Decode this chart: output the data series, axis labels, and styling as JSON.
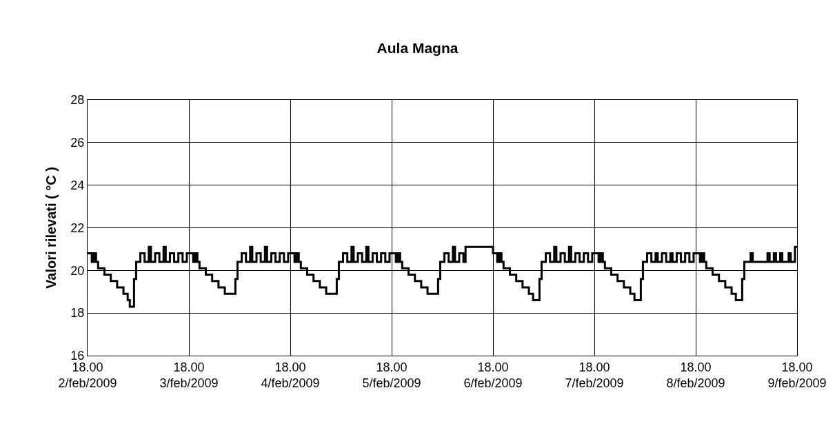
{
  "chart_data": {
    "type": "step",
    "title": "Aula Magna",
    "ylabel": "Valori rilevati ( °C )",
    "x": [
      "2009-02-02T18:00",
      "2009-02-02T19:00",
      "2009-02-02T19:30",
      "2009-02-02T20:00",
      "2009-02-02T20:30",
      "2009-02-02T22:00",
      "2009-02-02T23:30",
      "2009-02-03T01:00",
      "2009-02-03T02:30",
      "2009-02-03T03:30",
      "2009-02-03T04:00",
      "2009-02-03T05:00",
      "2009-02-03T05:30",
      "2009-02-03T06:30",
      "2009-02-03T07:30",
      "2009-02-03T08:30",
      "2009-02-03T09:00",
      "2009-02-03T10:00",
      "2009-02-03T11:00",
      "2009-02-03T12:00",
      "2009-02-03T12:30",
      "2009-02-03T13:30",
      "2009-02-03T14:30",
      "2009-02-03T15:30",
      "2009-02-03T16:30",
      "2009-02-03T17:30",
      "2009-02-03T18:00",
      "2009-02-03T19:00",
      "2009-02-03T19:30",
      "2009-02-03T20:00",
      "2009-02-03T20:30",
      "2009-02-03T22:00",
      "2009-02-03T23:30",
      "2009-02-04T01:00",
      "2009-02-04T02:30",
      "2009-02-04T05:00",
      "2009-02-04T05:30",
      "2009-02-04T06:30",
      "2009-02-04T07:30",
      "2009-02-04T08:30",
      "2009-02-04T09:00",
      "2009-02-04T10:00",
      "2009-02-04T11:00",
      "2009-02-04T12:00",
      "2009-02-04T12:30",
      "2009-02-04T13:30",
      "2009-02-04T14:30",
      "2009-02-04T15:30",
      "2009-02-04T16:30",
      "2009-02-04T17:30",
      "2009-02-04T18:00",
      "2009-02-04T19:00",
      "2009-02-04T19:30",
      "2009-02-04T20:00",
      "2009-02-04T20:30",
      "2009-02-04T22:00",
      "2009-02-04T23:30",
      "2009-02-05T01:00",
      "2009-02-05T02:30",
      "2009-02-05T05:00",
      "2009-02-05T05:30",
      "2009-02-05T06:30",
      "2009-02-05T07:30",
      "2009-02-05T08:30",
      "2009-02-05T09:00",
      "2009-02-05T10:00",
      "2009-02-05T11:00",
      "2009-02-05T12:00",
      "2009-02-05T12:30",
      "2009-02-05T13:30",
      "2009-02-05T14:30",
      "2009-02-05T15:30",
      "2009-02-05T16:30",
      "2009-02-05T17:30",
      "2009-02-05T18:00",
      "2009-02-05T19:00",
      "2009-02-05T19:30",
      "2009-02-05T20:00",
      "2009-02-05T20:30",
      "2009-02-05T22:00",
      "2009-02-05T23:30",
      "2009-02-06T01:00",
      "2009-02-06T02:30",
      "2009-02-06T05:00",
      "2009-02-06T05:30",
      "2009-02-06T06:30",
      "2009-02-06T07:30",
      "2009-02-06T08:30",
      "2009-02-06T09:00",
      "2009-02-06T10:00",
      "2009-02-06T11:00",
      "2009-02-06T11:30",
      "2009-02-06T18:00",
      "2009-02-06T19:00",
      "2009-02-06T19:30",
      "2009-02-06T20:00",
      "2009-02-06T20:30",
      "2009-02-06T22:00",
      "2009-02-06T23:30",
      "2009-02-07T01:00",
      "2009-02-07T02:30",
      "2009-02-07T03:30",
      "2009-02-07T05:00",
      "2009-02-07T05:30",
      "2009-02-07T06:30",
      "2009-02-07T07:30",
      "2009-02-07T08:30",
      "2009-02-07T09:00",
      "2009-02-07T10:00",
      "2009-02-07T11:00",
      "2009-02-07T12:00",
      "2009-02-07T12:30",
      "2009-02-07T13:30",
      "2009-02-07T14:30",
      "2009-02-07T15:30",
      "2009-02-07T16:30",
      "2009-02-07T17:30",
      "2009-02-07T18:00",
      "2009-02-07T19:00",
      "2009-02-07T19:30",
      "2009-02-07T20:00",
      "2009-02-07T20:30",
      "2009-02-07T22:00",
      "2009-02-07T23:30",
      "2009-02-08T01:00",
      "2009-02-08T02:30",
      "2009-02-08T03:30",
      "2009-02-08T05:00",
      "2009-02-08T05:30",
      "2009-02-08T06:30",
      "2009-02-08T07:30",
      "2009-02-08T08:30",
      "2009-02-08T09:00",
      "2009-02-08T10:00",
      "2009-02-08T11:00",
      "2009-02-08T12:00",
      "2009-02-08T12:30",
      "2009-02-08T13:30",
      "2009-02-08T14:30",
      "2009-02-08T15:30",
      "2009-02-08T16:30",
      "2009-02-08T17:30",
      "2009-02-08T18:00",
      "2009-02-08T19:00",
      "2009-02-08T19:30",
      "2009-02-08T20:00",
      "2009-02-08T20:30",
      "2009-02-08T22:00",
      "2009-02-08T23:30",
      "2009-02-09T01:00",
      "2009-02-09T02:30",
      "2009-02-09T03:30",
      "2009-02-09T05:00",
      "2009-02-09T05:30",
      "2009-02-09T07:00",
      "2009-02-09T07:30",
      "2009-02-09T11:00",
      "2009-02-09T11:30",
      "2009-02-09T12:30",
      "2009-02-09T13:00",
      "2009-02-09T14:00",
      "2009-02-09T14:30",
      "2009-02-09T16:00",
      "2009-02-09T16:30",
      "2009-02-09T17:30",
      "2009-02-09T18:00"
    ],
    "values": [
      20.8,
      20.4,
      20.8,
      20.4,
      20.1,
      19.8,
      19.5,
      19.2,
      18.9,
      18.6,
      18.3,
      19.6,
      20.4,
      20.8,
      20.4,
      21.1,
      20.4,
      20.8,
      20.4,
      21.1,
      20.4,
      20.8,
      20.4,
      20.8,
      20.4,
      20.8,
      20.8,
      20.4,
      20.8,
      20.4,
      20.1,
      19.8,
      19.5,
      19.2,
      18.9,
      19.6,
      20.4,
      20.8,
      20.4,
      21.1,
      20.4,
      20.8,
      20.4,
      21.1,
      20.4,
      20.8,
      20.4,
      20.8,
      20.4,
      20.8,
      20.8,
      20.4,
      20.8,
      20.4,
      20.1,
      19.8,
      19.5,
      19.2,
      18.9,
      19.6,
      20.4,
      20.8,
      20.4,
      21.1,
      20.4,
      20.8,
      20.4,
      21.1,
      20.4,
      20.8,
      20.4,
      20.8,
      20.4,
      20.8,
      20.8,
      20.4,
      20.8,
      20.4,
      20.1,
      19.8,
      19.5,
      19.2,
      18.9,
      19.6,
      20.4,
      20.8,
      20.4,
      21.1,
      20.4,
      20.8,
      20.4,
      21.1,
      20.8,
      20.4,
      20.8,
      20.4,
      20.1,
      19.8,
      19.5,
      19.2,
      18.9,
      18.6,
      19.6,
      20.4,
      20.8,
      20.4,
      21.1,
      20.4,
      20.8,
      20.4,
      21.1,
      20.4,
      20.8,
      20.4,
      20.8,
      20.4,
      20.8,
      20.8,
      20.4,
      20.8,
      20.4,
      20.1,
      19.8,
      19.5,
      19.2,
      18.9,
      18.6,
      19.6,
      20.4,
      20.8,
      20.4,
      20.8,
      20.4,
      20.8,
      20.4,
      20.8,
      20.4,
      20.8,
      20.4,
      20.8,
      20.4,
      20.8,
      20.8,
      20.4,
      20.8,
      20.4,
      20.1,
      19.8,
      19.5,
      19.2,
      18.9,
      18.6,
      19.6,
      20.4,
      20.8,
      20.4,
      20.8,
      20.4,
      20.8,
      20.4,
      20.8,
      20.4,
      20.8,
      20.4,
      21.1,
      21.1
    ],
    "color": "#000000",
    "xlim": [
      "2009-02-02T18:00",
      "2009-02-09T18:00"
    ],
    "xticks": [
      {
        "value": "2009-02-02T18:00",
        "label": "18.00\n2/feb/2009"
      },
      {
        "value": "2009-02-03T18:00",
        "label": "18.00\n3/feb/2009"
      },
      {
        "value": "2009-02-04T18:00",
        "label": "18.00\n4/feb/2009"
      },
      {
        "value": "2009-02-05T18:00",
        "label": "18.00\n5/feb/2009"
      },
      {
        "value": "2009-02-06T18:00",
        "label": "18.00\n6/feb/2009"
      },
      {
        "value": "2009-02-07T18:00",
        "label": "18.00\n7/feb/2009"
      },
      {
        "value": "2009-02-08T18:00",
        "label": "18.00\n8/feb/2009"
      },
      {
        "value": "2009-02-09T18:00",
        "label": "18.00\n9/feb/2009"
      }
    ],
    "ylim": [
      16,
      28
    ],
    "yticks": [
      16,
      18,
      20,
      22,
      24,
      26,
      28
    ],
    "grid": true,
    "legend": false
  }
}
